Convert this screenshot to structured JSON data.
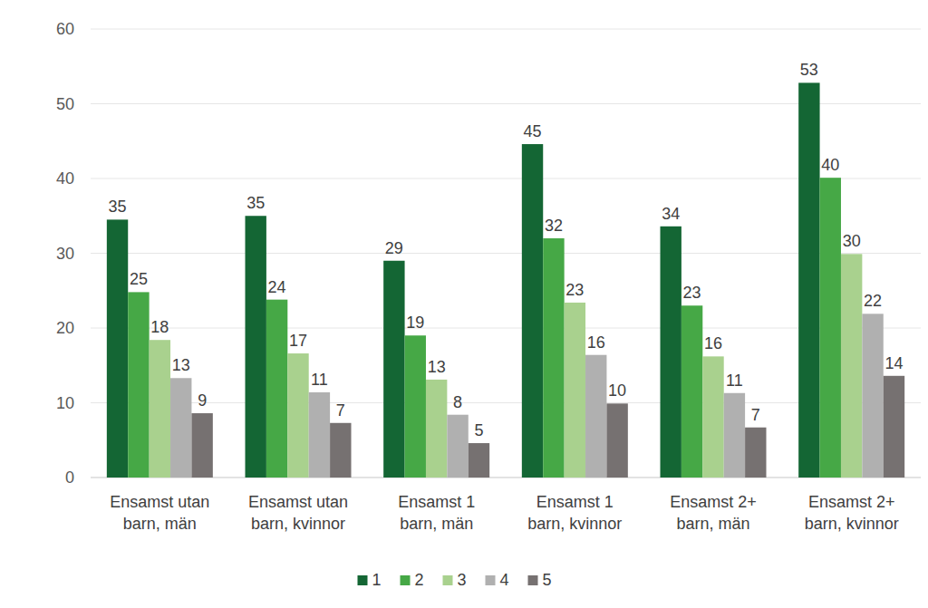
{
  "chart_data": {
    "type": "bar",
    "categories": [
      "Ensamst utan barn, män",
      "Ensamst utan barn, kvinnor",
      "Ensamst 1 barn, män",
      "Ensamst 1 barn, kvinnor",
      "Ensamst 2+ barn, män",
      "Ensamst 2+ barn, kvinnor"
    ],
    "series": [
      {
        "name": "1",
        "color": "#146634",
        "values": [
          34.5,
          35.0,
          29.0,
          44.6,
          33.6,
          52.8
        ],
        "value_labels": [
          "35",
          "35",
          "29",
          "45",
          "34",
          "53"
        ]
      },
      {
        "name": "2",
        "color": "#46a846",
        "values": [
          24.8,
          23.8,
          19.0,
          32.0,
          23.0,
          40.1
        ],
        "value_labels": [
          "25",
          "24",
          "19",
          "32",
          "23",
          "40"
        ]
      },
      {
        "name": "3",
        "color": "#a9d18e",
        "values": [
          18.4,
          16.6,
          13.1,
          23.4,
          16.2,
          29.9
        ],
        "value_labels": [
          "18",
          "17",
          "13",
          "23",
          "16",
          "30"
        ]
      },
      {
        "name": "4",
        "color": "#b0b0b0",
        "values": [
          13.3,
          11.4,
          8.4,
          16.4,
          11.3,
          21.9
        ],
        "value_labels": [
          "13",
          "11",
          "8",
          "16",
          "11",
          "22"
        ]
      },
      {
        "name": "5",
        "color": "#767171",
        "values": [
          8.6,
          7.3,
          4.6,
          9.9,
          6.7,
          13.6
        ],
        "value_labels": [
          "9",
          "7",
          "5",
          "10",
          "7",
          "14"
        ]
      }
    ],
    "ylim": [
      0,
      60
    ],
    "yticks": [
      0,
      10,
      20,
      30,
      40,
      50,
      60
    ],
    "grid": true,
    "data_labels": true,
    "legend": "bottom"
  }
}
